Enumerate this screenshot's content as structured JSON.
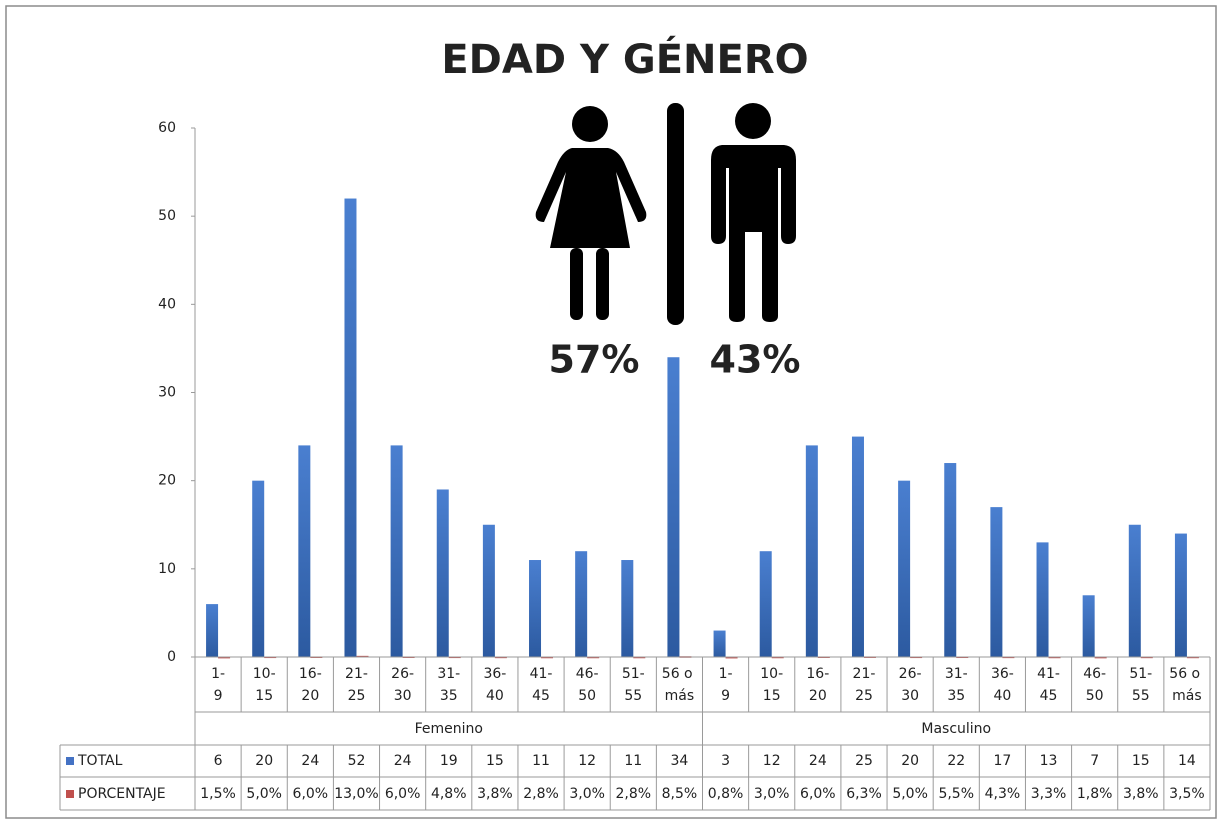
{
  "chart_data": {
    "type": "bar",
    "title": "EDAD Y GÉNERO",
    "annotations": [
      "57%",
      "43%"
    ],
    "groups": [
      {
        "name": "Femenino",
        "categories": [
          "1-9",
          "10-15",
          "16-20",
          "21-25",
          "26-30",
          "31-35",
          "36-40",
          "41-45",
          "46-50",
          "51-55",
          "56 o más"
        ]
      },
      {
        "name": "Masculino",
        "categories": [
          "1-9",
          "10-15",
          "16-20",
          "21-25",
          "26-30",
          "31-35",
          "36-40",
          "41-45",
          "46-50",
          "51-55",
          "56 o más"
        ]
      }
    ],
    "series": [
      {
        "name": "TOTAL",
        "color": "#4472c4",
        "values": [
          6,
          20,
          24,
          52,
          24,
          19,
          15,
          11,
          12,
          11,
          34,
          3,
          12,
          24,
          25,
          20,
          22,
          17,
          13,
          7,
          15,
          14
        ]
      },
      {
        "name": "PORCENTAJE",
        "color": "#c0504d",
        "values": [
          0.015,
          0.05,
          0.06,
          0.13,
          0.06,
          0.048,
          0.038,
          0.028,
          0.03,
          0.028,
          0.085,
          0.008,
          0.03,
          0.06,
          0.063,
          0.05,
          0.055,
          0.043,
          0.033,
          0.018,
          0.038,
          0.035
        ],
        "value_labels": [
          "1,5%",
          "5,0%",
          "6,0%",
          "13,0%",
          "6,0%",
          "4,8%",
          "3,8%",
          "2,8%",
          "3,0%",
          "2,8%",
          "8,5%",
          "0,8%",
          "3,0%",
          "6,0%",
          "6,3%",
          "5,0%",
          "5,5%",
          "4,3%",
          "3,3%",
          "1,8%",
          "3,8%",
          "3,5%"
        ]
      }
    ],
    "ylim": [
      0,
      60
    ],
    "yticks": [
      0,
      10,
      20,
      30,
      40,
      50,
      60
    ],
    "grid": false
  }
}
